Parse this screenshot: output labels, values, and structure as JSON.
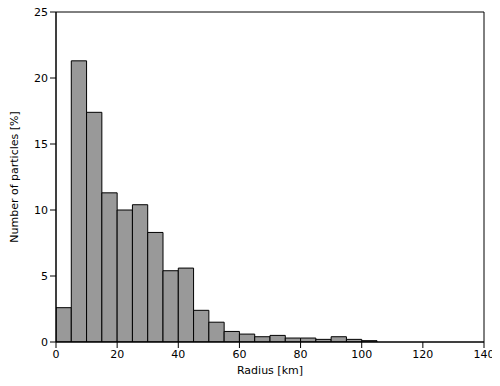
{
  "chart_data": {
    "type": "histogram",
    "x_label": "Radius [km]",
    "y_label": "Number of particles [%]",
    "bins": [
      0,
      5,
      10,
      15,
      20,
      25,
      30,
      35,
      40,
      45,
      50,
      55,
      60,
      65,
      70,
      75,
      80,
      85,
      90,
      95,
      100,
      105
    ],
    "values": [
      2.6,
      21.3,
      17.4,
      11.3,
      10.0,
      10.4,
      8.3,
      5.4,
      5.6,
      2.4,
      1.5,
      0.8,
      0.6,
      0.4,
      0.5,
      0.3,
      0.3,
      0.2,
      0.4,
      0.2,
      0.1
    ],
    "color": "#999999",
    "xlim": [
      0,
      140
    ],
    "xticks": [
      0,
      20,
      40,
      60,
      80,
      100,
      120,
      140
    ],
    "ylim": [
      0,
      25
    ],
    "yticks": [
      0,
      5,
      10,
      15,
      20,
      25
    ],
    "grid": false
  }
}
